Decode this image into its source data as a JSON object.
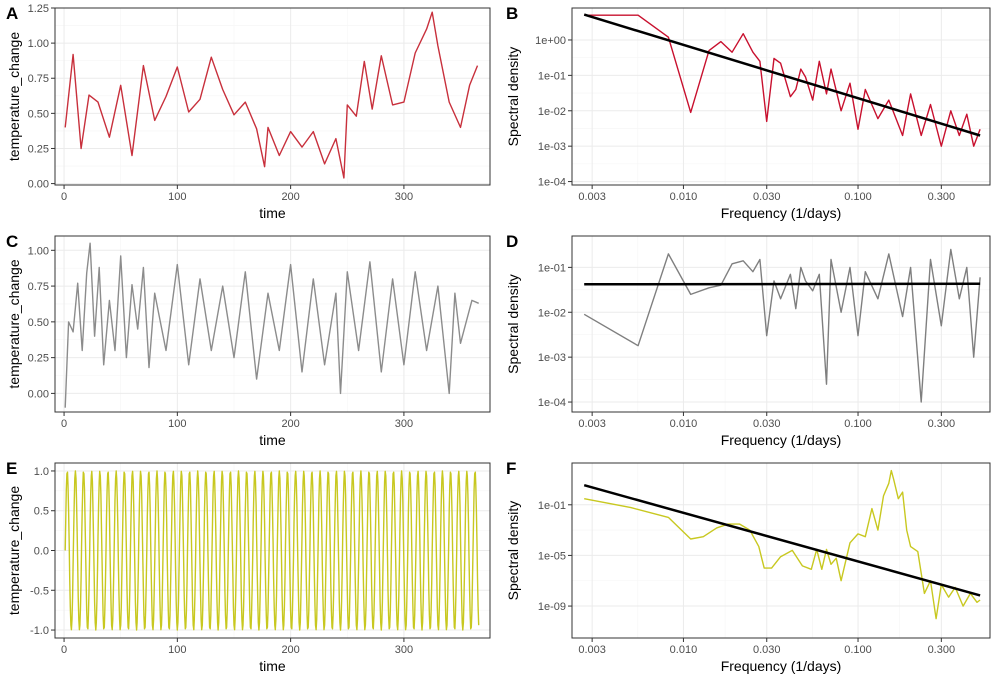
{
  "chart_data": [
    {
      "id": "A",
      "type": "line",
      "tag": "A",
      "color": "#c8303c",
      "xlabel": "time",
      "ylabel": "temperature_change",
      "xlim": [
        -8,
        376
      ],
      "ylim": [
        -0.01,
        1.25
      ],
      "xticks": [
        0,
        100,
        200,
        300
      ],
      "xtick_labels": [
        "0",
        "100",
        "200",
        "300"
      ],
      "yticks": [
        0,
        0.25,
        0.5,
        0.75,
        1.0,
        1.25
      ],
      "ytick_labels": [
        "0.00",
        "0.25",
        "0.50",
        "0.75",
        "1.00",
        "1.25"
      ],
      "series": [
        {
          "x": [
            1,
            8,
            15,
            22,
            30,
            40,
            50,
            60,
            70,
            80,
            90,
            100,
            110,
            120,
            130,
            140,
            150,
            160,
            170,
            177,
            180,
            190,
            200,
            210,
            220,
            230,
            240,
            247,
            250,
            258,
            265,
            272,
            280,
            290,
            300,
            310,
            320,
            325,
            330,
            340,
            350,
            358,
            365
          ],
          "y": [
            0.4,
            0.92,
            0.25,
            0.63,
            0.58,
            0.33,
            0.7,
            0.2,
            0.84,
            0.45,
            0.62,
            0.83,
            0.51,
            0.6,
            0.9,
            0.67,
            0.49,
            0.58,
            0.39,
            0.12,
            0.4,
            0.2,
            0.37,
            0.26,
            0.37,
            0.14,
            0.32,
            0.04,
            0.56,
            0.48,
            0.87,
            0.53,
            0.91,
            0.56,
            0.58,
            0.93,
            1.1,
            1.22,
            0.98,
            0.58,
            0.4,
            0.7,
            0.84
          ]
        }
      ]
    },
    {
      "id": "B",
      "type": "line",
      "tag": "B",
      "color": "#c8102e",
      "log_x": true,
      "log_y": true,
      "xlabel": "Frequency (1/days)",
      "ylabel": "Spectral density",
      "xlim": [
        0.0023,
        0.57
      ],
      "ylim": [
        8e-05,
        8
      ],
      "xticks": [
        0.003,
        0.01,
        0.03,
        0.1,
        0.3
      ],
      "xtick_labels": [
        "0.003",
        "0.010",
        "0.030",
        "0.100",
        "0.300"
      ],
      "yticks": [
        0.0001,
        0.001,
        0.01,
        0.1,
        1
      ],
      "ytick_labels": [
        "1e-04",
        "1e-03",
        "1e-02",
        "1e-01",
        "1e+00"
      ],
      "series": [
        {
          "x": [
            0.0027,
            0.0055,
            0.0082,
            0.011,
            0.014,
            0.0164,
            0.019,
            0.022,
            0.025,
            0.0274,
            0.03,
            0.033,
            0.036,
            0.041,
            0.044,
            0.047,
            0.05,
            0.055,
            0.06,
            0.066,
            0.07,
            0.08,
            0.09,
            0.1,
            0.11,
            0.13,
            0.15,
            0.18,
            0.2,
            0.23,
            0.26,
            0.3,
            0.34,
            0.38,
            0.42,
            0.46,
            0.5
          ],
          "y": [
            5,
            5,
            1.2,
            0.009,
            0.5,
            0.9,
            0.45,
            1.5,
            0.45,
            0.25,
            0.005,
            0.3,
            0.22,
            0.025,
            0.04,
            0.15,
            0.09,
            0.02,
            0.25,
            0.03,
            0.15,
            0.01,
            0.06,
            0.003,
            0.04,
            0.006,
            0.02,
            0.002,
            0.03,
            0.002,
            0.015,
            0.001,
            0.01,
            0.002,
            0.008,
            0.001,
            0.003
          ]
        },
        {
          "name": "fit",
          "x": [
            0.0027,
            0.5
          ],
          "y": [
            5.2,
            0.002
          ]
        }
      ]
    },
    {
      "id": "C",
      "type": "line",
      "tag": "C",
      "color": "#8c8c8c",
      "xlabel": "time",
      "ylabel": "temperature_change",
      "xlim": [
        -8,
        376
      ],
      "ylim": [
        -0.13,
        1.1
      ],
      "xticks": [
        0,
        100,
        200,
        300
      ],
      "xtick_labels": [
        "0",
        "100",
        "200",
        "300"
      ],
      "yticks": [
        0,
        0.25,
        0.5,
        0.75,
        1.0
      ],
      "ytick_labels": [
        "0.00",
        "0.25",
        "0.50",
        "0.75",
        "1.00"
      ],
      "series": [
        {
          "x": [
            1,
            4,
            8,
            12,
            16,
            20,
            23,
            27,
            31,
            35,
            40,
            45,
            50,
            55,
            60,
            65,
            70,
            75,
            80,
            90,
            100,
            110,
            120,
            130,
            140,
            150,
            160,
            170,
            180,
            190,
            200,
            210,
            220,
            230,
            240,
            244,
            250,
            260,
            270,
            280,
            290,
            300,
            310,
            320,
            330,
            340,
            345,
            350,
            360,
            366
          ],
          "y": [
            -0.1,
            0.5,
            0.43,
            0.77,
            0.3,
            0.84,
            1.05,
            0.4,
            0.88,
            0.2,
            0.65,
            0.3,
            0.96,
            0.25,
            0.76,
            0.45,
            0.88,
            0.18,
            0.7,
            0.3,
            0.9,
            0.2,
            0.8,
            0.3,
            0.75,
            0.25,
            0.85,
            0.1,
            0.7,
            0.3,
            0.9,
            0.15,
            0.8,
            0.2,
            0.7,
            0.0,
            0.85,
            0.3,
            0.92,
            0.15,
            0.8,
            0.2,
            0.85,
            0.3,
            0.75,
            0.0,
            0.7,
            0.35,
            0.65,
            0.63
          ]
        }
      ]
    },
    {
      "id": "D",
      "type": "line",
      "tag": "D",
      "color": "#7f7f7f",
      "log_x": true,
      "log_y": true,
      "xlabel": "Frequency (1/days)",
      "ylabel": "Spectral density",
      "xlim": [
        0.0023,
        0.57
      ],
      "ylim": [
        6e-05,
        0.5
      ],
      "xticks": [
        0.003,
        0.01,
        0.03,
        0.1,
        0.3
      ],
      "xtick_labels": [
        "0.003",
        "0.010",
        "0.030",
        "0.100",
        "0.300"
      ],
      "yticks": [
        0.0001,
        0.001,
        0.01,
        0.1
      ],
      "ytick_labels": [
        "1e-04",
        "1e-03",
        "1e-02",
        "1e-01"
      ],
      "series": [
        {
          "x": [
            0.0027,
            0.0055,
            0.0082,
            0.011,
            0.014,
            0.0164,
            0.019,
            0.022,
            0.025,
            0.0274,
            0.03,
            0.033,
            0.036,
            0.041,
            0.044,
            0.047,
            0.05,
            0.055,
            0.06,
            0.066,
            0.07,
            0.08,
            0.09,
            0.1,
            0.11,
            0.13,
            0.15,
            0.18,
            0.2,
            0.23,
            0.26,
            0.3,
            0.34,
            0.38,
            0.42,
            0.46,
            0.5
          ],
          "y": [
            0.009,
            0.0018,
            0.2,
            0.025,
            0.035,
            0.04,
            0.12,
            0.14,
            0.08,
            0.15,
            0.003,
            0.05,
            0.02,
            0.07,
            0.012,
            0.1,
            0.05,
            0.03,
            0.07,
            0.00025,
            0.15,
            0.01,
            0.1,
            0.003,
            0.08,
            0.02,
            0.2,
            0.008,
            0.1,
            0.0001,
            0.15,
            0.005,
            0.25,
            0.02,
            0.1,
            0.001,
            0.06
          ]
        },
        {
          "name": "fit",
          "x": [
            0.0027,
            0.5
          ],
          "y": [
            0.042,
            0.043
          ]
        }
      ]
    },
    {
      "id": "E",
      "type": "line",
      "tag": "E",
      "color": "#c8c820",
      "periodic": true,
      "period": 7.2,
      "phase": 0.0,
      "xlabel": "time",
      "ylabel": "temperature_change",
      "xlim": [
        -8,
        376
      ],
      "ylim": [
        -1.1,
        1.1
      ],
      "xticks": [
        0,
        100,
        200,
        300
      ],
      "xtick_labels": [
        "0",
        "100",
        "200",
        "300"
      ],
      "yticks": [
        -1.0,
        -0.5,
        0,
        0.5,
        1.0
      ],
      "ytick_labels": [
        "-1.0",
        "-0.5",
        "0.0",
        "0.5",
        "1.0"
      ],
      "series": [
        {
          "x_start": 1,
          "x_end": 366,
          "amplitude": 1.0
        }
      ]
    },
    {
      "id": "F",
      "type": "line",
      "tag": "F",
      "color": "#c8c820",
      "log_x": true,
      "log_y": true,
      "xlabel": "Frequency (1/days)",
      "ylabel": "Spectral density",
      "xlim": [
        0.0023,
        0.57
      ],
      "ylim": [
        3e-12,
        200
      ],
      "xticks": [
        0.003,
        0.01,
        0.03,
        0.1,
        0.3
      ],
      "xtick_labels": [
        "0.003",
        "0.010",
        "0.030",
        "0.100",
        "0.300"
      ],
      "yticks": [
        1e-09,
        1e-05,
        0.1
      ],
      "ytick_labels": [
        "1e-09",
        "1e-05",
        "1e-01"
      ],
      "series": [
        {
          "x": [
            0.0027,
            0.005,
            0.0082,
            0.011,
            0.013,
            0.0155,
            0.018,
            0.021,
            0.024,
            0.027,
            0.029,
            0.032,
            0.036,
            0.042,
            0.048,
            0.054,
            0.058,
            0.062,
            0.066,
            0.07,
            0.075,
            0.08,
            0.09,
            0.1,
            0.11,
            0.12,
            0.13,
            0.14,
            0.15,
            0.155,
            0.16,
            0.17,
            0.18,
            0.19,
            0.2,
            0.22,
            0.24,
            0.26,
            0.28,
            0.3,
            0.33,
            0.36,
            0.4,
            0.44,
            0.48,
            0.5
          ],
          "y": [
            0.3,
            0.06,
            0.01,
            0.0002,
            0.0003,
            0.0015,
            0.003,
            0.003,
            0.001,
            5e-05,
            1e-06,
            1e-06,
            8e-06,
            2.5e-05,
            1.5e-06,
            8e-07,
            3e-05,
            8e-07,
            3e-05,
            2e-06,
            6e-06,
            1e-07,
            0.0001,
            0.0005,
            0.0003,
            0.05,
            0.001,
            0.5,
            5,
            50,
            10,
            0.3,
            1,
            0.001,
            5e-05,
            2e-05,
            1e-08,
            1e-07,
            1e-10,
            5e-08,
            5e-09,
            3e-08,
            1e-09,
            1e-08,
            2e-09,
            3e-09
          ]
        },
        {
          "name": "fit",
          "x": [
            0.0027,
            0.5
          ],
          "y": [
            3.5,
            7e-09
          ]
        }
      ]
    }
  ]
}
